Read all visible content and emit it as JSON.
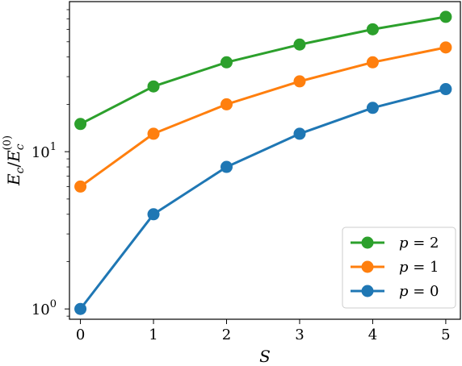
{
  "chart_data": {
    "type": "line",
    "xlabel": "S",
    "ylabel": "E_c / E_c^(0)",
    "yscale": "log",
    "x": [
      0,
      1,
      2,
      3,
      4,
      5
    ],
    "xticks": [
      "0",
      "1",
      "2",
      "3",
      "4",
      "5"
    ],
    "yticks": [
      {
        "base": "10",
        "exp": "0"
      },
      {
        "base": "10",
        "exp": "1"
      }
    ],
    "xlim": [
      -0.15,
      5.2
    ],
    "ylim": [
      0.86,
      90
    ],
    "grid": false,
    "legend_position": "lower-right",
    "series": [
      {
        "name": "p = 2",
        "label_var": "p",
        "label_val": "= 2",
        "color": "#2ca02c",
        "values": [
          15,
          26,
          37,
          48,
          60,
          72
        ]
      },
      {
        "name": "p = 1",
        "label_var": "p",
        "label_val": "= 1",
        "color": "#ff7f0e",
        "values": [
          6,
          13,
          20,
          28,
          37,
          46
        ]
      },
      {
        "name": "p = 0",
        "label_var": "p",
        "label_val": "= 0",
        "color": "#1f77b4",
        "values": [
          1,
          4,
          8,
          13,
          19,
          25
        ]
      }
    ]
  }
}
